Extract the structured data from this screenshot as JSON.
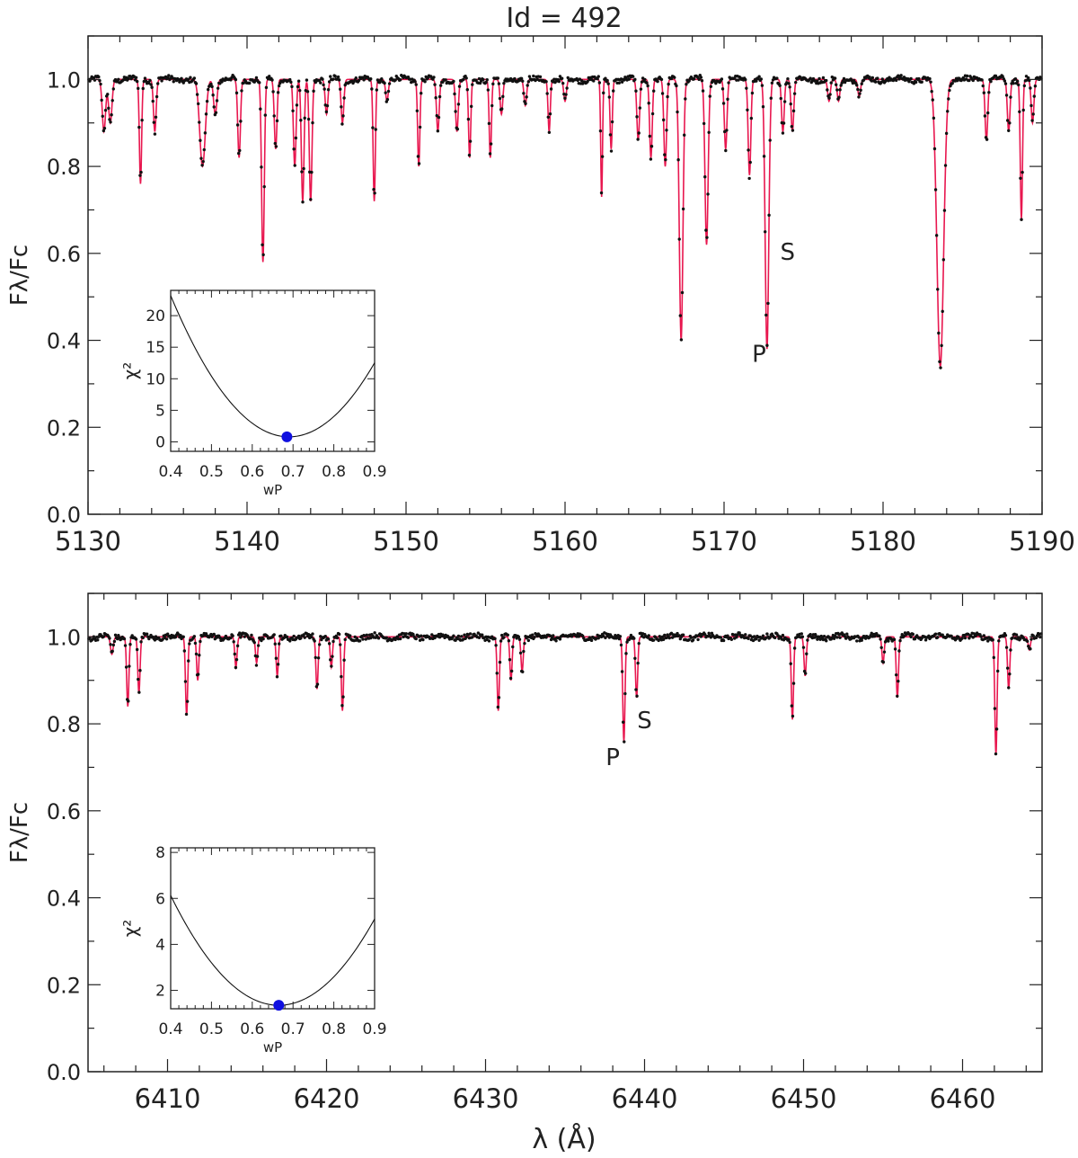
{
  "title": "Id = 492",
  "colors": {
    "observed": "#111111",
    "model": "#e8174f",
    "minimum": "#1010e0",
    "axis": "#222222"
  },
  "chart_data": [
    {
      "type": "scatter",
      "panel": "top",
      "xlabel": "",
      "ylabel": "Fλ/Fc",
      "xlim": [
        5130,
        5190
      ],
      "ylim": [
        0.0,
        1.1
      ],
      "xticks": [
        5130,
        5140,
        5150,
        5160,
        5170,
        5180,
        5190
      ],
      "yticks": [
        0.0,
        0.2,
        0.4,
        0.6,
        0.8,
        1.0
      ],
      "continuum": 1.0,
      "lines": [
        {
          "x": 5131.0,
          "depth": 0.12,
          "w": 0.15
        },
        {
          "x": 5131.4,
          "depth": 0.1,
          "w": 0.15
        },
        {
          "x": 5133.3,
          "depth": 0.24,
          "w": 0.1
        },
        {
          "x": 5134.2,
          "depth": 0.12,
          "w": 0.12
        },
        {
          "x": 5137.2,
          "depth": 0.2,
          "w": 0.25
        },
        {
          "x": 5138.0,
          "depth": 0.08,
          "w": 0.15
        },
        {
          "x": 5139.5,
          "depth": 0.18,
          "w": 0.12
        },
        {
          "x": 5141.0,
          "depth": 0.42,
          "w": 0.12
        },
        {
          "x": 5141.8,
          "depth": 0.16,
          "w": 0.12
        },
        {
          "x": 5143.0,
          "depth": 0.2,
          "w": 0.12
        },
        {
          "x": 5143.5,
          "depth": 0.28,
          "w": 0.12
        },
        {
          "x": 5144.0,
          "depth": 0.28,
          "w": 0.12
        },
        {
          "x": 5145.0,
          "depth": 0.08,
          "w": 0.12
        },
        {
          "x": 5146.0,
          "depth": 0.1,
          "w": 0.12
        },
        {
          "x": 5148.0,
          "depth": 0.28,
          "w": 0.1
        },
        {
          "x": 5148.8,
          "depth": 0.05,
          "w": 0.12
        },
        {
          "x": 5150.8,
          "depth": 0.2,
          "w": 0.1
        },
        {
          "x": 5152.0,
          "depth": 0.12,
          "w": 0.12
        },
        {
          "x": 5153.2,
          "depth": 0.12,
          "w": 0.12
        },
        {
          "x": 5154.0,
          "depth": 0.18,
          "w": 0.1
        },
        {
          "x": 5155.3,
          "depth": 0.18,
          "w": 0.1
        },
        {
          "x": 5156.0,
          "depth": 0.08,
          "w": 0.12
        },
        {
          "x": 5157.5,
          "depth": 0.06,
          "w": 0.12
        },
        {
          "x": 5159.0,
          "depth": 0.12,
          "w": 0.1
        },
        {
          "x": 5160.0,
          "depth": 0.05,
          "w": 0.12
        },
        {
          "x": 5162.3,
          "depth": 0.27,
          "w": 0.08
        },
        {
          "x": 5162.9,
          "depth": 0.16,
          "w": 0.1
        },
        {
          "x": 5164.6,
          "depth": 0.14,
          "w": 0.12
        },
        {
          "x": 5165.4,
          "depth": 0.18,
          "w": 0.12
        },
        {
          "x": 5166.3,
          "depth": 0.2,
          "w": 0.12
        },
        {
          "x": 5167.3,
          "depth": 0.6,
          "w": 0.16
        },
        {
          "x": 5168.9,
          "depth": 0.38,
          "w": 0.14
        },
        {
          "x": 5170.1,
          "depth": 0.16,
          "w": 0.12
        },
        {
          "x": 5171.6,
          "depth": 0.22,
          "w": 0.12
        },
        {
          "x": 5172.7,
          "depth": 0.62,
          "w": 0.16
        },
        {
          "x": 5173.7,
          "depth": 0.12,
          "w": 0.12
        },
        {
          "x": 5174.3,
          "depth": 0.12,
          "w": 0.12
        },
        {
          "x": 5176.6,
          "depth": 0.05,
          "w": 0.12
        },
        {
          "x": 5177.2,
          "depth": 0.05,
          "w": 0.12
        },
        {
          "x": 5178.5,
          "depth": 0.04,
          "w": 0.12
        },
        {
          "x": 5183.6,
          "depth": 0.66,
          "w": 0.3
        },
        {
          "x": 5186.5,
          "depth": 0.14,
          "w": 0.12
        },
        {
          "x": 5187.9,
          "depth": 0.12,
          "w": 0.12
        },
        {
          "x": 5188.7,
          "depth": 0.32,
          "w": 0.1
        },
        {
          "x": 5189.4,
          "depth": 0.1,
          "w": 0.12
        }
      ],
      "labels": [
        {
          "text": "P",
          "x": 5172.2,
          "y": 0.35
        },
        {
          "text": "S",
          "x": 5174.0,
          "y": 0.585
        }
      ],
      "inset": {
        "type": "line",
        "xlabel": "wP",
        "ylabel": "χ²",
        "xlim": [
          0.4,
          0.9
        ],
        "ylim": [
          -1.5,
          24
        ],
        "xticks": [
          0.4,
          0.5,
          0.6,
          0.7,
          0.8,
          0.9
        ],
        "yticks": [
          0,
          5,
          10,
          15,
          20
        ],
        "curve_min_x": 0.69,
        "curve_min_y": 0.8,
        "curve_a": 266,
        "minimum": {
          "x": 0.685,
          "y": 0.8
        }
      }
    },
    {
      "type": "scatter",
      "panel": "bottom",
      "xlabel": "λ (Å)",
      "ylabel": "Fλ/Fc",
      "xlim": [
        6405,
        6465
      ],
      "ylim": [
        0.0,
        1.1
      ],
      "xticks": [
        6410,
        6420,
        6430,
        6440,
        6450,
        6460
      ],
      "yticks": [
        0.0,
        0.2,
        0.4,
        0.6,
        0.8,
        1.0
      ],
      "continuum": 1.0,
      "lines": [
        {
          "x": 6406.5,
          "depth": 0.04,
          "w": 0.12
        },
        {
          "x": 6407.5,
          "depth": 0.16,
          "w": 0.1
        },
        {
          "x": 6408.2,
          "depth": 0.13,
          "w": 0.1
        },
        {
          "x": 6411.2,
          "depth": 0.18,
          "w": 0.1
        },
        {
          "x": 6411.9,
          "depth": 0.1,
          "w": 0.1
        },
        {
          "x": 6414.3,
          "depth": 0.07,
          "w": 0.1
        },
        {
          "x": 6415.6,
          "depth": 0.06,
          "w": 0.1
        },
        {
          "x": 6416.9,
          "depth": 0.09,
          "w": 0.1
        },
        {
          "x": 6419.4,
          "depth": 0.12,
          "w": 0.1
        },
        {
          "x": 6420.3,
          "depth": 0.07,
          "w": 0.1
        },
        {
          "x": 6421.0,
          "depth": 0.17,
          "w": 0.1
        },
        {
          "x": 6430.8,
          "depth": 0.17,
          "w": 0.1
        },
        {
          "x": 6431.6,
          "depth": 0.1,
          "w": 0.1
        },
        {
          "x": 6432.3,
          "depth": 0.08,
          "w": 0.1
        },
        {
          "x": 6438.7,
          "depth": 0.24,
          "w": 0.1
        },
        {
          "x": 6439.5,
          "depth": 0.14,
          "w": 0.1
        },
        {
          "x": 6449.3,
          "depth": 0.19,
          "w": 0.1
        },
        {
          "x": 6450.1,
          "depth": 0.09,
          "w": 0.1
        },
        {
          "x": 6455.0,
          "depth": 0.06,
          "w": 0.1
        },
        {
          "x": 6455.9,
          "depth": 0.14,
          "w": 0.1
        },
        {
          "x": 6462.1,
          "depth": 0.27,
          "w": 0.1
        },
        {
          "x": 6462.9,
          "depth": 0.12,
          "w": 0.1
        },
        {
          "x": 6464.2,
          "depth": 0.03,
          "w": 0.1
        }
      ],
      "labels": [
        {
          "text": "P",
          "x": 6438.0,
          "y": 0.705
        },
        {
          "text": "S",
          "x": 6440.0,
          "y": 0.79
        }
      ],
      "inset": {
        "type": "line",
        "xlabel": "wP",
        "ylabel": "χ²",
        "xlim": [
          0.4,
          0.9
        ],
        "ylim": [
          1.2,
          8.2
        ],
        "xticks": [
          0.4,
          0.5,
          0.6,
          0.7,
          0.8,
          0.9
        ],
        "yticks": [
          2,
          4,
          6,
          8
        ],
        "curve_min_x": 0.665,
        "curve_min_y": 1.35,
        "curve_a": 68,
        "minimum": {
          "x": 0.665,
          "y": 1.35
        }
      }
    }
  ]
}
